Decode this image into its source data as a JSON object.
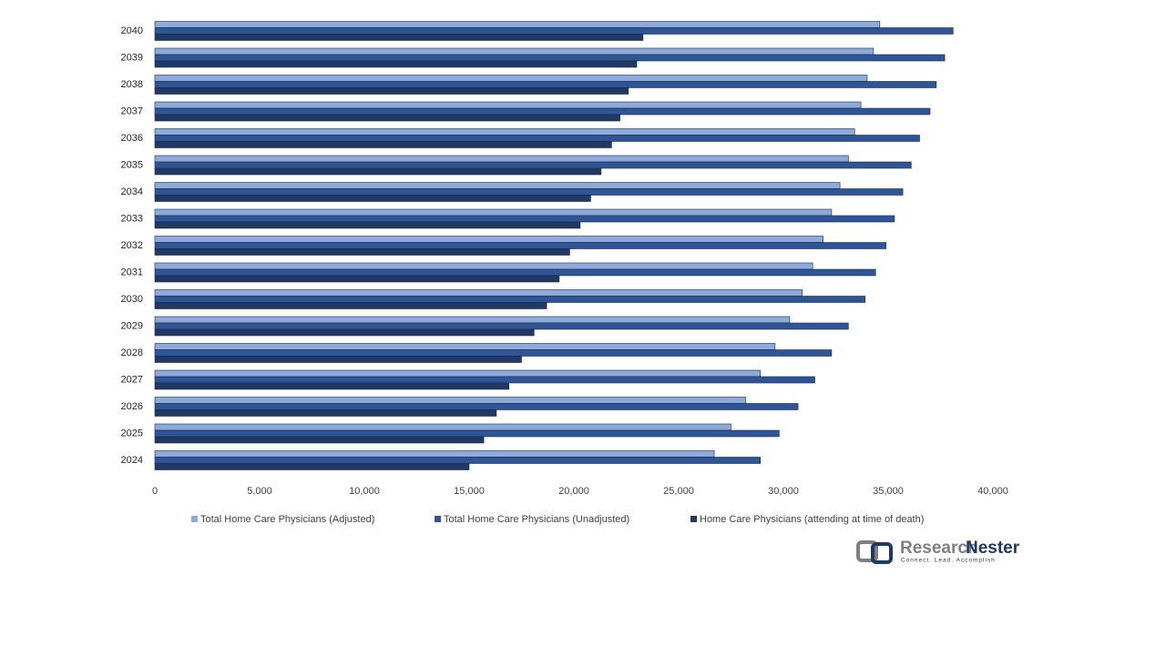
{
  "chart_data": {
    "type": "hbar",
    "categories": [
      "2024",
      "2025",
      "2026",
      "2027",
      "2028",
      "2029",
      "2030",
      "2031",
      "2032",
      "2033",
      "2034",
      "2035",
      "2036",
      "2037",
      "2038",
      "2039",
      "2040"
    ],
    "series": [
      {
        "name": "Total Home Care Physicians (Adjusted)",
        "color": "#8eaadb",
        "values": [
          26700,
          27500,
          28200,
          28900,
          29600,
          30300,
          30900,
          31400,
          31900,
          32300,
          32700,
          33100,
          33400,
          33700,
          34000,
          34300,
          34600
        ]
      },
      {
        "name": "Total Home Care Physicians (Unadjusted)",
        "color": "#2f5597",
        "values": [
          28900,
          29800,
          30700,
          31500,
          32300,
          33100,
          33900,
          34400,
          34900,
          35300,
          35700,
          36100,
          36500,
          37000,
          37300,
          37700,
          38100
        ]
      },
      {
        "name": "Home Care Physicians (attending at time of death)",
        "color": "#1f3864",
        "values": [
          15000,
          15700,
          16300,
          16900,
          17500,
          18100,
          18700,
          19300,
          19800,
          20300,
          20800,
          21300,
          21800,
          22200,
          22600,
          23000,
          23300
        ]
      }
    ],
    "xlim": [
      0,
      40000
    ],
    "xticks": [
      0,
      {
        "value": 5000,
        "label": "5,000"
      },
      {
        "value": 10000,
        "label": "10,000"
      },
      {
        "value": 15000,
        "label": "15,000"
      },
      {
        "value": 20000,
        "label": "20,000"
      },
      {
        "value": 25000,
        "label": "25,000"
      },
      {
        "value": 30000,
        "label": "30,000"
      },
      {
        "value": 35000,
        "label": "35,000"
      },
      {
        "value": 40000,
        "label": "40,000"
      }
    ],
    "legend": "bottom"
  },
  "logo": {
    "name_a": "Research",
    "name_b": "Nester",
    "tagline": "Connect. Lead. Accomplish"
  }
}
